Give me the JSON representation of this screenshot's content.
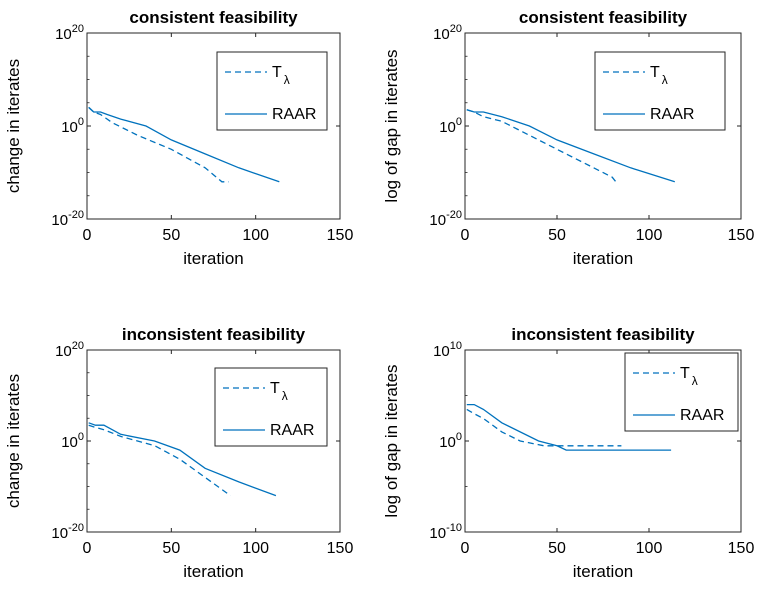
{
  "chart_data": [
    {
      "type": "line",
      "title": "consistent feasibility",
      "xlabel": "iteration",
      "ylabel": "change in iterates",
      "yscale": "log",
      "xlim": [
        0,
        150
      ],
      "ylim_exponents": [
        -20,
        20
      ],
      "x_ticks": [
        0,
        50,
        100,
        150
      ],
      "y_tick_exponents": [
        -20,
        0,
        20
      ],
      "legend": "top-right",
      "series": [
        {
          "name": "T",
          "name_subscript": "λ",
          "style": "dashed",
          "color": "#0072BD",
          "points": [
            [
              1,
              10000.0
            ],
            [
              4,
              1000.0
            ],
            [
              8,
              300.0
            ],
            [
              15,
              5.0
            ],
            [
              30,
              0.01
            ],
            [
              50,
              1e-05
            ],
            [
              60,
              1e-07
            ],
            [
              70,
              1e-09
            ],
            [
              80,
              1e-12
            ],
            [
              84,
              1e-12
            ]
          ]
        },
        {
          "name": "RAAR",
          "style": "solid",
          "color": "#0072BD",
          "points": [
            [
              1,
              10000.0
            ],
            [
              4,
              1000.0
            ],
            [
              8,
              1000.0
            ],
            [
              12,
              300.0
            ],
            [
              20,
              30.0
            ],
            [
              35,
              1.0
            ],
            [
              50,
              0.001
            ],
            [
              70,
              1e-06
            ],
            [
              90,
              1e-09
            ],
            [
              114,
              1e-12
            ]
          ]
        }
      ]
    },
    {
      "type": "line",
      "title": "consistent feasibility",
      "xlabel": "iteration",
      "ylabel": "log of gap in iterates",
      "yscale": "log",
      "xlim": [
        0,
        150
      ],
      "ylim_exponents": [
        -20,
        20
      ],
      "x_ticks": [
        0,
        50,
        100,
        150
      ],
      "y_tick_exponents": [
        -20,
        0,
        20
      ],
      "legend": "top-right",
      "series": [
        {
          "name": "T",
          "name_subscript": "λ",
          "style": "dashed",
          "color": "#0072BD",
          "points": [
            [
              1,
              3000.0
            ],
            [
              5,
              1000.0
            ],
            [
              10,
              100.0
            ],
            [
              20,
              10.0
            ],
            [
              35,
              0.01
            ],
            [
              50,
              1e-05
            ],
            [
              65,
              1e-08
            ],
            [
              80,
              1e-11
            ],
            [
              82,
              1e-12
            ]
          ]
        },
        {
          "name": "RAAR",
          "style": "solid",
          "color": "#0072BD",
          "points": [
            [
              1,
              3000.0
            ],
            [
              5,
              1000.0
            ],
            [
              10,
              1000.0
            ],
            [
              20,
              100.0
            ],
            [
              35,
              1.0
            ],
            [
              50,
              0.001
            ],
            [
              70,
              1e-06
            ],
            [
              90,
              1e-09
            ],
            [
              114,
              1e-12
            ]
          ]
        }
      ]
    },
    {
      "type": "line",
      "title": "inconsistent feasibility",
      "xlabel": "iteration",
      "ylabel": "change in iterates",
      "yscale": "log",
      "xlim": [
        0,
        150
      ],
      "ylim_exponents": [
        -20,
        20
      ],
      "x_ticks": [
        0,
        50,
        100,
        150
      ],
      "y_tick_exponents": [
        -20,
        0,
        20
      ],
      "legend": "top-right",
      "series": [
        {
          "name": "T",
          "name_subscript": "λ",
          "style": "dashed",
          "color": "#0072BD",
          "points": [
            [
              1,
              3000.0
            ],
            [
              5,
              1000.0
            ],
            [
              10,
              300.0
            ],
            [
              20,
              10.0
            ],
            [
              40,
              0.1
            ],
            [
              55,
              0.0001
            ],
            [
              70,
              1e-08
            ],
            [
              85,
              1e-12
            ]
          ]
        },
        {
          "name": "RAAR",
          "style": "solid",
          "color": "#0072BD",
          "points": [
            [
              1,
              10000.0
            ],
            [
              5,
              3000.0
            ],
            [
              10,
              3000.0
            ],
            [
              20,
              30.0
            ],
            [
              40,
              1.0
            ],
            [
              55,
              0.01
            ],
            [
              70,
              1e-06
            ],
            [
              90,
              1e-09
            ],
            [
              112,
              1e-12
            ]
          ]
        }
      ]
    },
    {
      "type": "line",
      "title": "inconsistent feasibility",
      "xlabel": "iteration",
      "ylabel": "log of gap in iterates",
      "yscale": "log",
      "xlim": [
        0,
        150
      ],
      "ylim_exponents": [
        -10,
        10
      ],
      "x_ticks": [
        0,
        50,
        100,
        150
      ],
      "y_tick_exponents": [
        -10,
        0,
        10
      ],
      "legend": "top-right",
      "series": [
        {
          "name": "T",
          "name_subscript": "λ",
          "style": "dashed",
          "color": "#0072BD",
          "points": [
            [
              1,
              3000.0
            ],
            [
              5,
              1000.0
            ],
            [
              10,
              300.0
            ],
            [
              20,
              10.0
            ],
            [
              30,
              1.0
            ],
            [
              43,
              0.3
            ],
            [
              50,
              0.3
            ],
            [
              85,
              0.3
            ]
          ]
        },
        {
          "name": "RAAR",
          "style": "solid",
          "color": "#0072BD",
          "points": [
            [
              1,
              10000.0
            ],
            [
              5,
              10000.0
            ],
            [
              10,
              3000.0
            ],
            [
              20,
              100.0
            ],
            [
              40,
              1.0
            ],
            [
              50,
              0.3
            ],
            [
              55,
              0.1
            ],
            [
              112,
              0.1
            ]
          ]
        }
      ]
    }
  ]
}
